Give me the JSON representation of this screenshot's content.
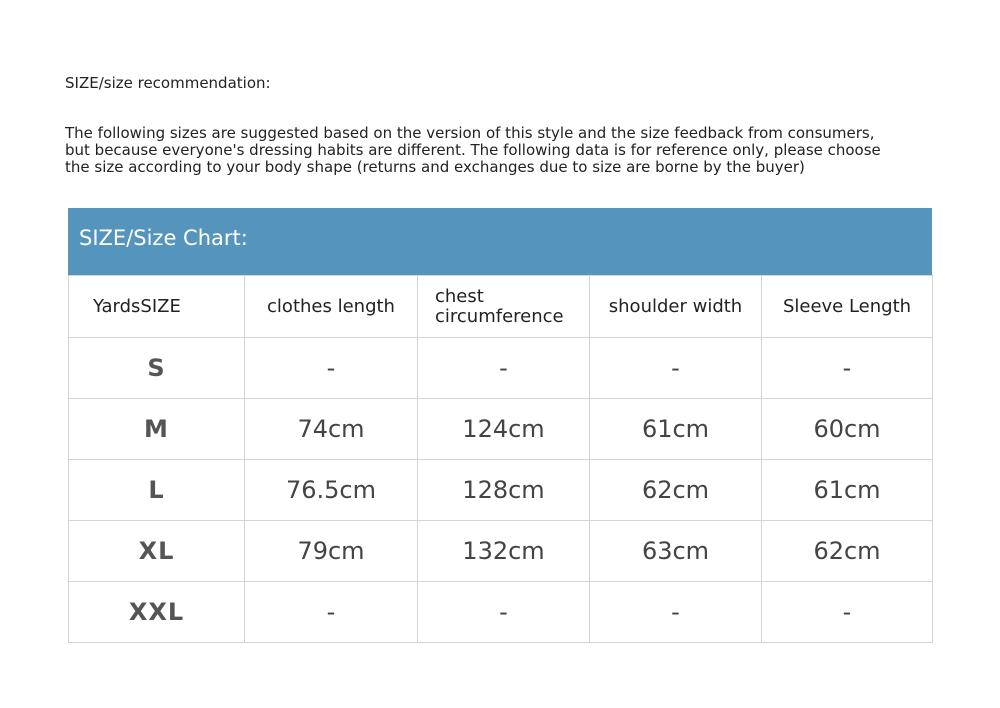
{
  "recommendation_title": "SIZE/size recommendation:",
  "intro_lines": [
    "The following sizes are suggested based on the version of this style and the size feedback from consumers,",
    "but because everyone's dressing habits are different. The following data is for reference only, please choose",
    "the size according to your body shape (returns and exchanges due to size are borne by the buyer)"
  ],
  "chart_title": "SIZE/Size Chart:",
  "header_color": "#5595bd",
  "columns": [
    "YardsSIZE",
    "clothes length",
    "chest circumference",
    "shoulder width",
    "Sleeve Length"
  ],
  "rows": [
    [
      "S",
      "-",
      "-",
      "-",
      "-"
    ],
    [
      "M",
      "74cm",
      "124cm",
      "61cm",
      "60cm"
    ],
    [
      "L",
      "76.5cm",
      "128cm",
      "62cm",
      "61cm"
    ],
    [
      "XL",
      "79cm",
      "132cm",
      "63cm",
      "62cm"
    ],
    [
      "XXL",
      "-",
      "-",
      "-",
      "-"
    ]
  ]
}
